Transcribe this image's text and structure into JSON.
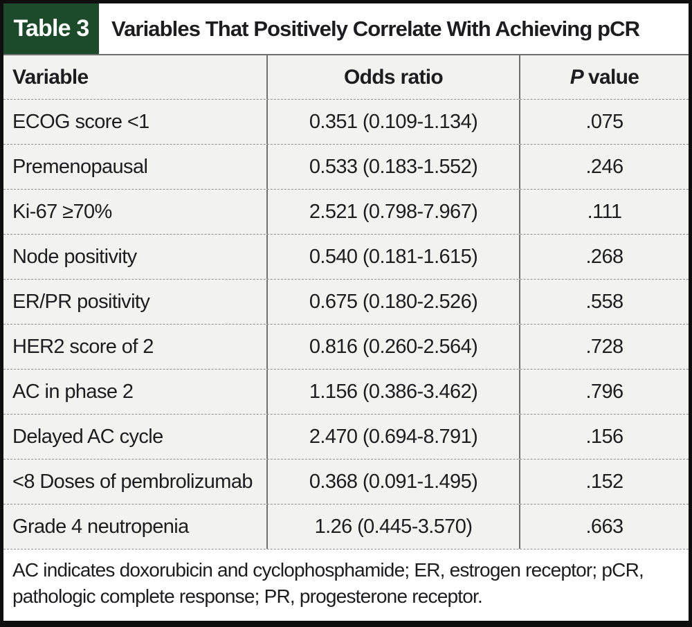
{
  "table": {
    "tag": "Table 3",
    "title": "Variables That Positively Correlate With Achieving pCR",
    "columns": {
      "variable": "Variable",
      "odds_ratio": "Odds ratio",
      "p_value_italic": "P",
      "p_value_rest": "value"
    },
    "rows": [
      {
        "variable": "ECOG score <1",
        "odds_ratio": "0.351 (0.109-1.134)",
        "p_value": ".075"
      },
      {
        "variable": "Premenopausal",
        "odds_ratio": "0.533 (0.183-1.552)",
        "p_value": ".246"
      },
      {
        "variable": "Ki-67 ≥70%",
        "odds_ratio": "2.521 (0.798-7.967)",
        "p_value": ".111"
      },
      {
        "variable": "Node positivity",
        "odds_ratio": "0.540 (0.181-1.615)",
        "p_value": ".268"
      },
      {
        "variable": "ER/PR positivity",
        "odds_ratio": "0.675 (0.180-2.526)",
        "p_value": ".558"
      },
      {
        "variable": "HER2 score of 2",
        "odds_ratio": "0.816 (0.260-2.564)",
        "p_value": ".728"
      },
      {
        "variable": "AC in phase 2",
        "odds_ratio": "1.156 (0.386-3.462)",
        "p_value": ".796"
      },
      {
        "variable": "Delayed AC cycle",
        "odds_ratio": "2.470 (0.694-8.791)",
        "p_value": ".156"
      },
      {
        "variable": "<8 Doses of pembrolizumab",
        "odds_ratio": "0.368 (0.091-1.495)",
        "p_value": ".152"
      },
      {
        "variable": "Grade 4 neutropenia",
        "odds_ratio": "1.26 (0.445-3.570)",
        "p_value": ".663"
      }
    ],
    "footnote": {
      "line1": "AC indicates doxorubicin and cyclophosphamide; ER, estrogen receptor; pCR,",
      "line2": "pathologic complete response; PR, progesterone receptor."
    },
    "colors": {
      "tag_background": "#1c4a2a",
      "row_background": "#f2f2f1",
      "outer_border": "#0e0e0e",
      "text": "#1d1c1e"
    }
  }
}
